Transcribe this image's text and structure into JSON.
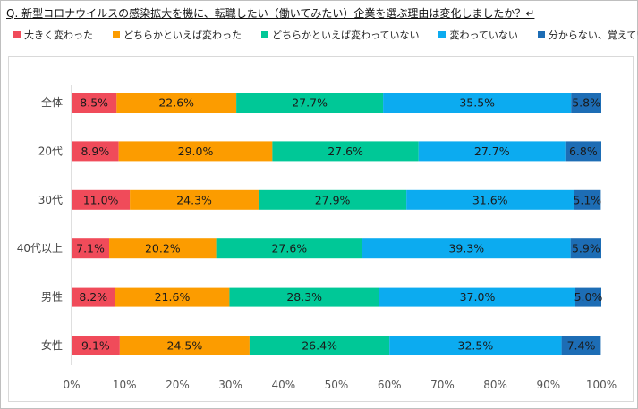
{
  "title": "Q. 新型コロナウイルスの感染拡大を機に、転職したい（働いてみたい）企業を選ぶ理由は変化しましたか？↵",
  "chart_data": {
    "type": "bar",
    "orientation": "horizontal",
    "stacked": "100%",
    "categories": [
      "全体",
      "20代",
      "30代",
      "40代以上",
      "男性",
      "女性"
    ],
    "series": [
      {
        "name": "大きく変わった",
        "color": "#f04b5a",
        "values": [
          8.5,
          8.9,
          11.0,
          7.1,
          8.2,
          9.1
        ]
      },
      {
        "name": "どちらかといえば変わった",
        "color": "#fc9c00",
        "values": [
          22.6,
          29.0,
          24.3,
          20.2,
          21.6,
          24.5
        ]
      },
      {
        "name": "どちらかといえば変わっていない",
        "color": "#00c897",
        "values": [
          27.7,
          27.6,
          27.9,
          27.6,
          28.3,
          26.4
        ]
      },
      {
        "name": "変わっていない",
        "color": "#0cabf0",
        "values": [
          35.5,
          27.7,
          31.6,
          39.3,
          37.0,
          32.5
        ]
      },
      {
        "name": "分からない、覚えていない",
        "color": "#1d6db5",
        "values": [
          5.8,
          6.8,
          5.1,
          5.9,
          5.0,
          7.4
        ]
      }
    ],
    "value_labels": [
      [
        "8.5%",
        "22.6%",
        "27.7%",
        "35.5%",
        "5.8%"
      ],
      [
        "8.9%",
        "29.0%",
        "27.6%",
        "27.7%",
        "6.8%"
      ],
      [
        "11.0%",
        "24.3%",
        "27.9%",
        "31.6%",
        "5.1%"
      ],
      [
        "7.1%",
        "20.2%",
        "27.6%",
        "39.3%",
        "5.9%"
      ],
      [
        "8.2%",
        "21.6%",
        "28.3%",
        "37.0%",
        "5.0%"
      ],
      [
        "9.1%",
        "24.5%",
        "26.4%",
        "32.5%",
        "7.4%"
      ]
    ],
    "x_ticks": [
      "0%",
      "10%",
      "20%",
      "30%",
      "40%",
      "50%",
      "60%",
      "70%",
      "80%",
      "90%",
      "100%"
    ],
    "xlim": [
      0,
      100
    ],
    "xlabel": "",
    "ylabel": "",
    "grid": false,
    "legend_position": "top"
  }
}
